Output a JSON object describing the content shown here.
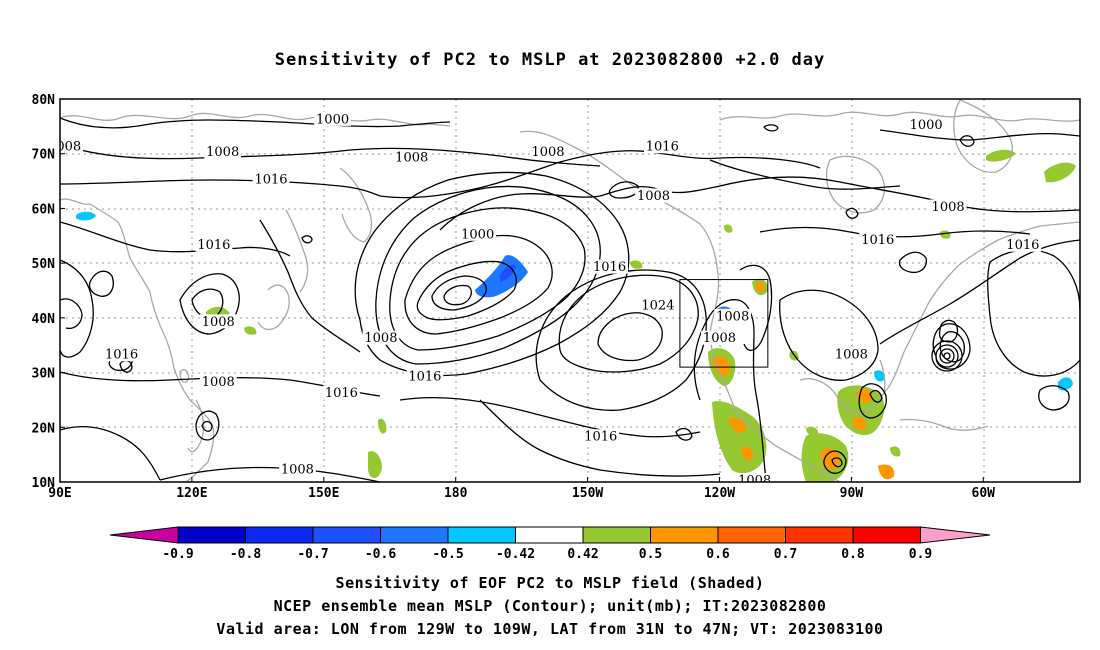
{
  "title": "Sensitivity of PC2 to MSLP at 2023082800 +2.0 day",
  "map": {
    "lat_labels": [
      {
        "lat": 80,
        "text": "80N"
      },
      {
        "lat": 70,
        "text": "70N"
      },
      {
        "lat": 60,
        "text": "60N"
      },
      {
        "lat": 50,
        "text": "50N"
      },
      {
        "lat": 40,
        "text": "40N"
      },
      {
        "lat": 30,
        "text": "30N"
      },
      {
        "lat": 20,
        "text": "20N"
      },
      {
        "lat": 10,
        "text": "10N"
      }
    ],
    "lon_labels": [
      {
        "lon": 90,
        "text": "90E"
      },
      {
        "lon": 120,
        "text": "120E"
      },
      {
        "lon": 150,
        "text": "150E"
      },
      {
        "lon": 180,
        "text": "180"
      },
      {
        "lon": 210,
        "text": "150W"
      },
      {
        "lon": 240,
        "text": "120W"
      },
      {
        "lon": 270,
        "text": "90W"
      },
      {
        "lon": 300,
        "text": "60W"
      }
    ],
    "lon_range": [
      90,
      322
    ],
    "lat_range": [
      10,
      80
    ],
    "valid_area_box": {
      "lon_west": 231,
      "lon_east": 251,
      "lat_south": 31,
      "lat_north": 47
    },
    "isobar_labels": [
      {
        "lon": 152,
        "lat": 76,
        "text": "1000"
      },
      {
        "lon": 92,
        "lat": 71,
        "text": "008"
      },
      {
        "lon": 127,
        "lat": 70,
        "text": "1008"
      },
      {
        "lon": 138,
        "lat": 65,
        "text": "1016"
      },
      {
        "lon": 170,
        "lat": 69,
        "text": "1008"
      },
      {
        "lon": 201,
        "lat": 70,
        "text": "1008"
      },
      {
        "lon": 227,
        "lat": 71,
        "text": "1016"
      },
      {
        "lon": 225,
        "lat": 62,
        "text": "1008"
      },
      {
        "lon": 287,
        "lat": 75,
        "text": "1000"
      },
      {
        "lon": 292,
        "lat": 60,
        "text": "1008"
      },
      {
        "lon": 276,
        "lat": 54,
        "text": "1016"
      },
      {
        "lon": 309,
        "lat": 53,
        "text": "1016"
      },
      {
        "lon": 125,
        "lat": 53,
        "text": "1016"
      },
      {
        "lon": 185,
        "lat": 55,
        "text": "1000"
      },
      {
        "lon": 215,
        "lat": 49,
        "text": "1016"
      },
      {
        "lon": 226,
        "lat": 42,
        "text": "1024"
      },
      {
        "lon": 126,
        "lat": 39,
        "text": "1008"
      },
      {
        "lon": 163,
        "lat": 36,
        "text": "1008"
      },
      {
        "lon": 104,
        "lat": 33,
        "text": "1016"
      },
      {
        "lon": 126,
        "lat": 28,
        "text": "1008"
      },
      {
        "lon": 154,
        "lat": 26,
        "text": "1016"
      },
      {
        "lon": 173,
        "lat": 29,
        "text": "1016"
      },
      {
        "lon": 243,
        "lat": 40,
        "text": "1008"
      },
      {
        "lon": 240,
        "lat": 36,
        "text": "1008"
      },
      {
        "lon": 270,
        "lat": 33,
        "text": "1008"
      },
      {
        "lon": 213,
        "lat": 18,
        "text": "1016"
      },
      {
        "lon": 144,
        "lat": 12,
        "text": "1008"
      },
      {
        "lon": 248,
        "lat": 10,
        "text": "1008"
      }
    ]
  },
  "colorbar": {
    "labels": [
      "-0.9",
      "-0.8",
      "-0.7",
      "-0.6",
      "-0.5",
      "-0.42",
      "0.42",
      "0.5",
      "0.6",
      "0.7",
      "0.8",
      "0.9"
    ],
    "colors": [
      "#0000c8",
      "#0a28f0",
      "#1e50ff",
      "#1e78ff",
      "#00c8ff",
      "#ffffff",
      "#96c832",
      "#ff9600",
      "#ff6400",
      "#ff3200",
      "#ff0000"
    ],
    "low_arrow_color": "#c800a0",
    "high_arrow_color": "#ff9ec8"
  },
  "footer": {
    "line1": "Sensitivity of EOF PC2 to MSLP field (Shaded)",
    "line2": "NCEP ensemble mean MSLP (Contour); unit(mb); IT:2023082800",
    "line3": "Valid area: LON from 129W to 109W, LAT from 31N to 47N; VT: 2023083100"
  }
}
